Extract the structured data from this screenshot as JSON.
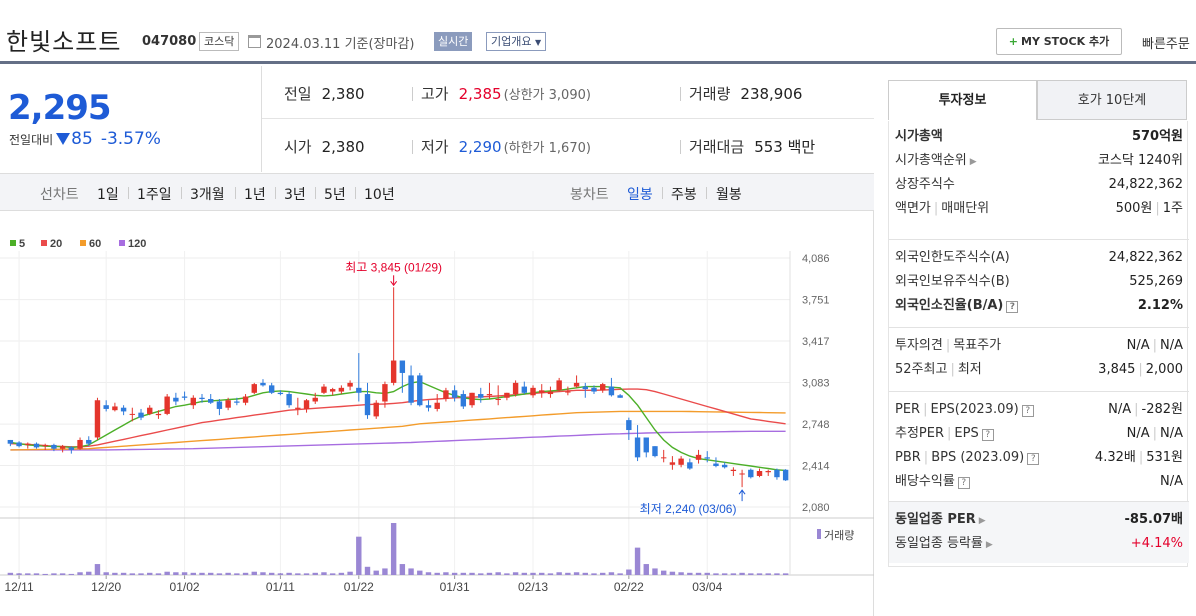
{
  "header": {
    "name": "한빛소프트",
    "code": "047080",
    "market": "코스닥",
    "date": "2024.03.11 기준(장마감)",
    "realtime": "실시간",
    "corp_info": "기업개요",
    "mystock": "MY STOCK 추가",
    "quick_order": "빠른주문"
  },
  "price": {
    "current": "2,295",
    "diff_label": "전일대비",
    "change": "85",
    "pct": "-3.57%"
  },
  "stats": {
    "prev_close": {
      "k": "전일",
      "v": "2,380"
    },
    "high": {
      "k": "고가",
      "v": "2,385",
      "sub": "(상한가 3,090)"
    },
    "volume": {
      "k": "거래량",
      "v": "238,906"
    },
    "open": {
      "k": "시가",
      "v": "2,380"
    },
    "low": {
      "k": "저가",
      "v": "2,290",
      "sub": "(하한가 1,670)"
    },
    "amount": {
      "k": "거래대금",
      "v": "553 백만"
    }
  },
  "period": {
    "label_line": "선차트",
    "line_opts": [
      "1일",
      "1주일",
      "3개월",
      "1년",
      "3년",
      "5년",
      "10년"
    ],
    "label_candle": "봉차트",
    "candle_opts": [
      "일봉",
      "주봉",
      "월봉"
    ],
    "selected": "일봉"
  },
  "chart_data": {
    "type": "candlestick",
    "legend": [
      "5",
      "20",
      "60",
      "120"
    ],
    "ma_colors": {
      "5": "#4caf28",
      "20": "#ea4b4b",
      "60": "#f39c2b",
      "120": "#a76de0"
    },
    "y_ticks": [
      4086,
      3751,
      3417,
      3083,
      2748,
      2414,
      2080
    ],
    "ylim": [
      2080,
      4086
    ],
    "x_ticks": [
      "12/11",
      "12/20",
      "01/02",
      "01/11",
      "01/22",
      "01/31",
      "02/13",
      "02/22",
      "03/04"
    ],
    "annotation_high": "최고 3,845 (01/29)",
    "annotation_low": "최저 2,240 (03/06)",
    "volume_label": "거래량",
    "candles": [
      [
        2620,
        2620,
        2570,
        2590
      ],
      [
        2600,
        2610,
        2560,
        2570
      ],
      [
        2580,
        2600,
        2550,
        2590
      ],
      [
        2590,
        2600,
        2550,
        2560
      ],
      [
        2570,
        2590,
        2540,
        2580
      ],
      [
        2580,
        2590,
        2530,
        2550
      ],
      [
        2550,
        2580,
        2520,
        2570
      ],
      [
        2560,
        2570,
        2510,
        2540
      ],
      [
        2550,
        2640,
        2540,
        2620
      ],
      [
        2620,
        2650,
        2570,
        2590
      ],
      [
        2640,
        2960,
        2620,
        2940
      ],
      [
        2900,
        2940,
        2850,
        2870
      ],
      [
        2860,
        2920,
        2850,
        2890
      ],
      [
        2880,
        2900,
        2820,
        2850
      ],
      [
        2830,
        2880,
        2770,
        2830
      ],
      [
        2840,
        2870,
        2780,
        2800
      ],
      [
        2830,
        2900,
        2820,
        2880
      ],
      [
        2820,
        2860,
        2790,
        2830
      ],
      [
        2830,
        2990,
        2820,
        2970
      ],
      [
        2960,
        3000,
        2900,
        2930
      ],
      [
        2970,
        3010,
        2940,
        2960
      ],
      [
        2900,
        2980,
        2870,
        2960
      ],
      [
        2960,
        2990,
        2920,
        2950
      ],
      [
        2950,
        2990,
        2910,
        2920
      ],
      [
        2930,
        2950,
        2820,
        2870
      ],
      [
        2880,
        2960,
        2860,
        2940
      ],
      [
        2930,
        2960,
        2900,
        2920
      ],
      [
        2920,
        2990,
        2900,
        2970
      ],
      [
        3000,
        3080,
        2990,
        3070
      ],
      [
        3080,
        3110,
        3050,
        3060
      ],
      [
        3060,
        3080,
        2990,
        3000
      ],
      [
        3000,
        3020,
        2980,
        2990
      ],
      [
        2990,
        3010,
        2880,
        2900
      ],
      [
        2870,
        2960,
        2820,
        2880
      ],
      [
        2870,
        2950,
        2840,
        2940
      ],
      [
        2930,
        3000,
        2910,
        2960
      ],
      [
        3000,
        3070,
        2990,
        3050
      ],
      [
        3010,
        3040,
        2980,
        3030
      ],
      [
        3010,
        3060,
        2990,
        3040
      ],
      [
        3050,
        3100,
        3020,
        3080
      ],
      [
        3040,
        3320,
        2930,
        3000
      ],
      [
        2990,
        3080,
        2790,
        2820
      ],
      [
        2810,
        2940,
        2790,
        2920
      ],
      [
        2930,
        3090,
        2880,
        3070
      ],
      [
        3080,
        3850,
        3060,
        3260
      ],
      [
        3260,
        3260,
        3000,
        3160
      ],
      [
        3140,
        3220,
        2900,
        2920
      ],
      [
        3140,
        3160,
        2890,
        2900
      ],
      [
        2900,
        2940,
        2850,
        2880
      ],
      [
        2870,
        2990,
        2850,
        2920
      ],
      [
        2950,
        3040,
        2930,
        3020
      ],
      [
        3020,
        3060,
        2930,
        2960
      ],
      [
        2990,
        3020,
        2870,
        2890
      ],
      [
        2900,
        3000,
        2880,
        3000
      ],
      [
        2990,
        3040,
        2920,
        2960
      ],
      [
        2980,
        3080,
        2950,
        2990
      ],
      [
        2950,
        3060,
        2900,
        2950
      ],
      [
        2960,
        3000,
        2940,
        3000
      ],
      [
        2990,
        3100,
        2970,
        3080
      ],
      [
        3050,
        3090,
        2990,
        3000
      ],
      [
        2980,
        3060,
        2960,
        3040
      ],
      [
        3000,
        3070,
        2960,
        3020
      ],
      [
        2990,
        3050,
        2960,
        3010
      ],
      [
        3020,
        3120,
        3010,
        3100
      ],
      [
        3010,
        3050,
        2980,
        3010
      ],
      [
        3050,
        3140,
        3040,
        3080
      ],
      [
        3050,
        3080,
        2960,
        3030
      ],
      [
        3040,
        3060,
        2990,
        3010
      ],
      [
        3020,
        3080,
        3000,
        3070
      ],
      [
        3050,
        3120,
        2970,
        2980
      ],
      [
        2980,
        2990,
        2960,
        2960
      ],
      [
        2780,
        2800,
        2620,
        2700
      ],
      [
        2640,
        2740,
        2450,
        2480
      ],
      [
        2640,
        2640,
        2480,
        2520
      ],
      [
        2570,
        2570,
        2480,
        2490
      ],
      [
        2480,
        2540,
        2440,
        2480
      ],
      [
        2420,
        2490,
        2380,
        2440
      ],
      [
        2420,
        2490,
        2400,
        2470
      ],
      [
        2440,
        2470,
        2380,
        2390
      ],
      [
        2460,
        2540,
        2430,
        2500
      ],
      [
        2480,
        2530,
        2440,
        2470
      ],
      [
        2430,
        2480,
        2400,
        2410
      ],
      [
        2420,
        2440,
        2390,
        2400
      ],
      [
        2370,
        2400,
        2330,
        2380
      ],
      [
        2350,
        2380,
        2240,
        2350
      ],
      [
        2380,
        2390,
        2310,
        2320
      ],
      [
        2330,
        2390,
        2320,
        2370
      ],
      [
        2360,
        2380,
        2330,
        2370
      ],
      [
        2380,
        2390,
        2300,
        2320
      ],
      [
        2380,
        2385,
        2290,
        2295
      ]
    ],
    "ma5": [
      2600,
      2590,
      2580,
      2575,
      2570,
      2568,
      2566,
      2560,
      2565,
      2580,
      2620,
      2660,
      2700,
      2740,
      2780,
      2810,
      2830,
      2850,
      2870,
      2890,
      2900,
      2915,
      2930,
      2935,
      2940,
      2945,
      2950,
      2960,
      2980,
      3000,
      3010,
      3015,
      3010,
      3000,
      2990,
      2980,
      2975,
      2980,
      2990,
      3000,
      3010,
      3010,
      3000,
      2995,
      3010,
      3050,
      3080,
      3090,
      3060,
      3030,
      3000,
      2980,
      2960,
      2950,
      2945,
      2950,
      2960,
      2970,
      2980,
      2990,
      3000,
      3010,
      3015,
      3020,
      3030,
      3040,
      3050,
      3050,
      3050,
      3045,
      3040,
      2980,
      2900,
      2800,
      2700,
      2620,
      2560,
      2520,
      2490,
      2470,
      2460,
      2450,
      2440,
      2430,
      2420,
      2410,
      2400,
      2390,
      2380,
      2375,
      2370
    ],
    "ma20": [
      2590,
      2588,
      2585,
      2580,
      2575,
      2570,
      2567,
      2565,
      2565,
      2570,
      2580,
      2595,
      2610,
      2625,
      2640,
      2655,
      2670,
      2685,
      2700,
      2715,
      2730,
      2745,
      2760,
      2770,
      2780,
      2790,
      2800,
      2810,
      2820,
      2830,
      2840,
      2850,
      2860,
      2865,
      2870,
      2875,
      2880,
      2885,
      2890,
      2895,
      2900,
      2905,
      2908,
      2910,
      2915,
      2920,
      2930,
      2940,
      2945,
      2950,
      2955,
      2960,
      2962,
      2965,
      2968,
      2970,
      2975,
      2980,
      2985,
      2990,
      2995,
      3000,
      3005,
      3010,
      3015,
      3020,
      3020,
      3020,
      3022,
      3025,
      3028,
      3030,
      3030,
      3025,
      3010,
      2990,
      2970,
      2950,
      2930,
      2910,
      2890,
      2870,
      2850,
      2830,
      2810,
      2790,
      2780,
      2770,
      2760,
      2750,
      2745
    ],
    "ma60": [
      2540,
      2541,
      2542,
      2543,
      2544,
      2545,
      2546,
      2547,
      2548,
      2550,
      2555,
      2560,
      2565,
      2570,
      2575,
      2580,
      2585,
      2590,
      2595,
      2600,
      2605,
      2610,
      2615,
      2620,
      2625,
      2630,
      2635,
      2640,
      2645,
      2650,
      2655,
      2660,
      2665,
      2670,
      2675,
      2680,
      2685,
      2690,
      2695,
      2700,
      2705,
      2710,
      2715,
      2720,
      2725,
      2730,
      2740,
      2750,
      2755,
      2760,
      2765,
      2770,
      2775,
      2780,
      2785,
      2790,
      2795,
      2800,
      2805,
      2810,
      2815,
      2820,
      2825,
      2830,
      2835,
      2840,
      2842,
      2844,
      2846,
      2848,
      2850,
      2850,
      2850,
      2850,
      2850,
      2850,
      2850,
      2850,
      2849,
      2848,
      2847,
      2846,
      2845,
      2844,
      2843,
      2842,
      2841,
      2840,
      2839,
      2838,
      2838
    ],
    "ma120": [
      2540,
      2540,
      2540,
      2540,
      2540,
      2540,
      2540,
      2540,
      2540,
      2540,
      2540,
      2540,
      2541,
      2542,
      2543,
      2544,
      2545,
      2546,
      2547,
      2548,
      2549,
      2550,
      2552,
      2554,
      2556,
      2558,
      2560,
      2562,
      2564,
      2566,
      2568,
      2570,
      2572,
      2574,
      2576,
      2578,
      2580,
      2582,
      2584,
      2586,
      2588,
      2590,
      2592,
      2594,
      2596,
      2598,
      2600,
      2603,
      2606,
      2609,
      2612,
      2615,
      2618,
      2621,
      2624,
      2627,
      2630,
      2633,
      2636,
      2639,
      2642,
      2645,
      2648,
      2651,
      2654,
      2657,
      2660,
      2663,
      2666,
      2669,
      2670,
      2672,
      2674,
      2676,
      2678,
      2680,
      2681,
      2682,
      2683,
      2684,
      2685,
      2686,
      2687,
      2688,
      2689,
      2690,
      2690,
      2690,
      2690,
      2690,
      2690
    ],
    "volume": [
      4,
      3,
      3,
      3,
      2,
      3,
      3,
      2,
      5,
      6,
      20,
      5,
      4,
      4,
      3,
      3,
      4,
      3,
      6,
      5,
      5,
      4,
      4,
      4,
      3,
      4,
      3,
      4,
      6,
      5,
      4,
      3,
      4,
      3,
      3,
      4,
      5,
      3,
      4,
      6,
      70,
      15,
      8,
      12,
      95,
      20,
      12,
      8,
      5,
      4,
      5,
      4,
      4,
      4,
      3,
      4,
      5,
      3,
      5,
      4,
      4,
      4,
      3,
      5,
      4,
      5,
      4,
      3,
      4,
      5,
      3,
      10,
      50,
      20,
      12,
      8,
      6,
      5,
      4,
      4,
      4,
      3,
      3,
      3,
      4,
      3,
      3,
      3,
      3,
      3,
      3
    ]
  },
  "right_panel": {
    "tab_on": "투자정보",
    "tab_off": "호가 10단계",
    "rows1": [
      {
        "k": "시가총액",
        "v": "570억원",
        "bold": true
      },
      {
        "k": "시가총액순위",
        "v": "코스닥 1240위",
        "arrow": true
      },
      {
        "k": "상장주식수",
        "v": "24,822,362"
      },
      {
        "k": "액면가",
        "k2": "매매단위",
        "v": "500원",
        "v2": "1주"
      }
    ],
    "rows2": [
      {
        "k": "외국인한도주식수(A)",
        "v": "24,822,362"
      },
      {
        "k": "외국인보유주식수(B)",
        "v": "525,269"
      },
      {
        "k": "외국인소진율(B/A)",
        "v": "2.12%",
        "bold": true,
        "q": true
      }
    ],
    "rows3": [
      {
        "k": "투자의견",
        "k2": "목표주가",
        "v": "N/A",
        "v2": "N/A"
      },
      {
        "k": "52주최고",
        "k2": "최저",
        "v": "3,845",
        "v2": "2,000"
      }
    ],
    "rows4": [
      {
        "k": "PER",
        "k2": "EPS(2023.09)",
        "v": "N/A",
        "v2": "-282원",
        "q": true
      },
      {
        "k": "추정PER",
        "k2": "EPS",
        "v": "N/A",
        "v2": "N/A",
        "q": true
      },
      {
        "k": "PBR",
        "k2": "BPS (2023.09)",
        "v": "4.32배",
        "v2": "531원",
        "q": true
      },
      {
        "k": "배당수익률",
        "v": "N/A",
        "q": true
      }
    ],
    "rows5": [
      {
        "k": "동일업종 PER",
        "v": "-85.07배",
        "bold": true,
        "arrow": true
      },
      {
        "k": "동일업종 등락률",
        "v": "+4.14%",
        "arrow": true,
        "up": true
      }
    ]
  }
}
